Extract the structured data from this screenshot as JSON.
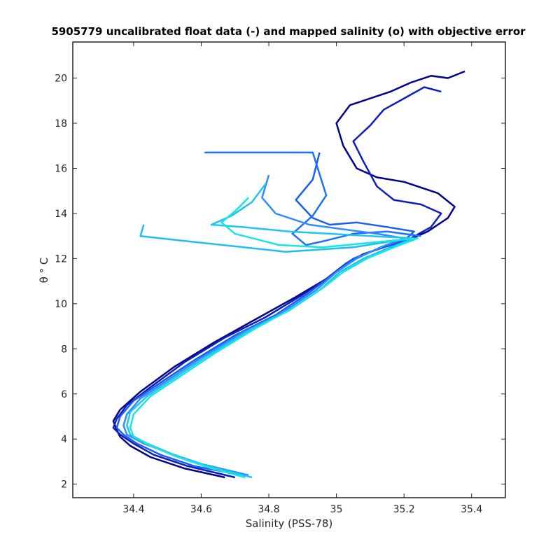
{
  "chart_data": {
    "type": "line",
    "title": "5905779 uncalibrated float data (-) and mapped salinity (o) with objective error",
    "xlabel": "Salinity (PSS-78)",
    "ylabel": "θ ° C",
    "xlim": [
      34.22,
      35.5
    ],
    "ylim": [
      1.4,
      21.6
    ],
    "xticks": [
      34.4,
      34.6,
      34.8,
      35,
      35.2,
      35.4
    ],
    "xtick_labels": [
      "34.4",
      "34.6",
      "34.8",
      "35",
      "35.2",
      "35.4"
    ],
    "yticks": [
      2,
      4,
      6,
      8,
      10,
      12,
      14,
      16,
      18,
      20
    ],
    "ytick_labels": [
      "2",
      "4",
      "6",
      "8",
      "10",
      "12",
      "14",
      "16",
      "18",
      "20"
    ],
    "grid": false,
    "legend": "none",
    "colormap": [
      "#00008b",
      "#0a2ad0",
      "#1a5cf5",
      "#2f8cff",
      "#1fc4f0",
      "#17e6e0"
    ],
    "series": [
      {
        "color": "#00008b",
        "x": [
          34.67,
          34.55,
          34.45,
          34.39,
          34.36,
          34.35,
          34.34,
          34.36,
          34.42,
          34.52,
          34.64,
          34.76,
          34.88,
          34.97,
          35.03,
          35.08,
          35.14,
          35.21,
          35.27,
          35.33,
          35.35,
          35.3,
          35.2,
          35.12,
          35.06,
          35.02,
          35.0,
          35.04,
          35.1,
          35.16,
          35.22,
          35.28,
          35.33,
          35.38
        ],
        "y": [
          2.3,
          2.7,
          3.2,
          3.7,
          4.1,
          4.4,
          4.8,
          5.3,
          6.1,
          7.2,
          8.3,
          9.3,
          10.3,
          11.1,
          11.8,
          12.2,
          12.5,
          12.8,
          13.2,
          13.8,
          14.3,
          14.9,
          15.4,
          15.6,
          16.0,
          17.0,
          18.0,
          18.8,
          19.1,
          19.4,
          19.8,
          20.1,
          20.0,
          20.3
        ]
      },
      {
        "color": "#0d1fb8",
        "x": [
          34.7,
          34.56,
          34.46,
          34.4,
          34.36,
          34.34,
          34.35,
          34.38,
          34.45,
          34.55,
          34.67,
          34.79,
          34.9,
          34.98,
          35.04,
          35.1,
          35.16,
          35.22,
          35.28,
          35.31,
          35.25,
          35.17,
          35.12,
          35.08,
          35.05,
          35.1,
          35.14,
          35.2,
          35.26,
          35.31
        ],
        "y": [
          2.3,
          2.8,
          3.3,
          3.8,
          4.2,
          4.5,
          4.9,
          5.5,
          6.3,
          7.4,
          8.5,
          9.4,
          10.4,
          11.2,
          11.9,
          12.3,
          12.6,
          12.9,
          13.4,
          14.0,
          14.4,
          14.6,
          15.2,
          16.3,
          17.2,
          17.9,
          18.6,
          19.1,
          19.6,
          19.4
        ]
      },
      {
        "color": "#1a5cf5",
        "x": [
          34.72,
          34.58,
          34.48,
          34.41,
          34.37,
          34.35,
          34.36,
          34.4,
          34.48,
          34.58,
          34.7,
          34.82,
          34.92,
          34.99,
          35.05,
          35.12,
          35.2,
          35.23,
          35.15,
          35.06,
          34.98,
          34.93,
          34.88,
          34.93,
          34.95
        ],
        "y": [
          2.4,
          2.8,
          3.3,
          3.8,
          4.2,
          4.5,
          5.0,
          5.7,
          6.5,
          7.5,
          8.6,
          9.5,
          10.5,
          11.3,
          12.0,
          12.4,
          12.8,
          13.2,
          13.4,
          13.6,
          13.5,
          13.8,
          14.6,
          15.5,
          16.7
        ]
      },
      {
        "color": "#1f6fff",
        "x": [
          35.25,
          35.15,
          35.05,
          34.97,
          34.91,
          34.87,
          34.93,
          34.97,
          34.93,
          34.61
        ],
        "y": [
          13.0,
          13.2,
          13.1,
          12.8,
          12.6,
          13.1,
          13.9,
          14.8,
          16.7,
          16.7
        ]
      },
      {
        "color": "#2f8cff",
        "x": [
          34.74,
          34.6,
          34.5,
          34.43,
          34.38,
          34.37,
          34.38,
          34.42,
          34.5,
          34.6,
          34.72,
          34.84,
          34.94,
          35.0,
          35.06,
          35.13,
          35.2,
          35.12,
          35.02,
          34.92,
          34.82,
          34.78,
          34.8
        ],
        "y": [
          2.4,
          2.9,
          3.4,
          3.8,
          4.2,
          4.6,
          5.1,
          5.8,
          6.6,
          7.6,
          8.7,
          9.6,
          10.6,
          11.4,
          12.0,
          12.5,
          12.9,
          13.1,
          13.3,
          13.5,
          14.0,
          14.7,
          15.7
        ]
      },
      {
        "color": "#1fc4f0",
        "x": [
          34.75,
          34.62,
          34.52,
          34.44,
          34.39,
          34.38,
          34.39,
          34.44,
          34.52,
          34.62,
          34.74,
          34.86,
          34.95,
          35.01,
          35.08,
          35.16,
          35.23,
          35.1,
          34.98,
          34.86,
          34.72,
          34.63,
          34.69,
          34.75,
          34.79
        ],
        "y": [
          2.3,
          2.8,
          3.3,
          3.8,
          4.2,
          4.6,
          5.2,
          5.9,
          6.7,
          7.7,
          8.8,
          9.7,
          10.6,
          11.4,
          12.0,
          12.5,
          12.9,
          13.0,
          13.1,
          13.2,
          13.4,
          13.5,
          13.9,
          14.5,
          15.3
        ]
      },
      {
        "color": "#1fbef0",
        "x": [
          35.22,
          35.05,
          34.85,
          34.6,
          34.42,
          34.43
        ],
        "y": [
          12.9,
          12.5,
          12.3,
          12.7,
          13.0,
          13.5
        ]
      },
      {
        "color": "#17e6e0",
        "x": [
          34.73,
          34.63,
          34.53,
          34.45,
          34.4,
          34.39,
          34.4,
          34.45,
          34.54,
          34.64,
          34.76,
          34.87,
          34.96,
          35.02,
          35.09,
          35.17,
          35.24,
          35.1,
          34.96,
          34.83,
          34.7,
          34.66,
          34.7,
          34.74
        ],
        "y": [
          2.3,
          2.7,
          3.2,
          3.7,
          4.1,
          4.5,
          5.1,
          5.9,
          6.8,
          7.8,
          8.9,
          9.8,
          10.7,
          11.4,
          12.0,
          12.5,
          12.9,
          12.7,
          12.5,
          12.6,
          13.1,
          13.6,
          14.1,
          14.7
        ]
      }
    ]
  }
}
